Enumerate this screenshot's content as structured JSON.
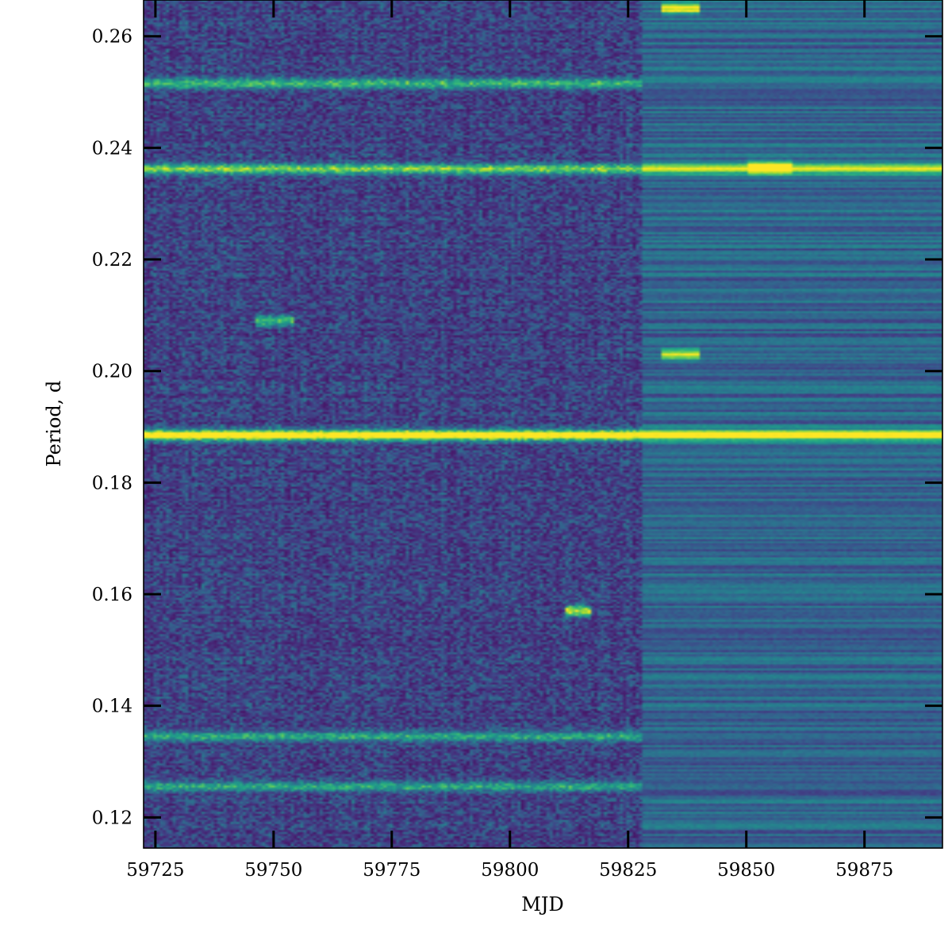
{
  "chart_data": {
    "type": "heatmap",
    "title": "",
    "xlabel": "MJD",
    "ylabel": "Period, d",
    "xlim": [
      59722.5,
      59891.5
    ],
    "ylim": [
      0.1145,
      0.2665
    ],
    "x_ticks": [
      59725,
      59750,
      59775,
      59800,
      59825,
      59850,
      59875
    ],
    "y_ticks": [
      0.12,
      0.14,
      0.16,
      0.18,
      0.2,
      0.22,
      0.24,
      0.26
    ],
    "x_tick_labels": [
      "59725",
      "59750",
      "59775",
      "59800",
      "59825",
      "59850",
      "59875"
    ],
    "y_tick_labels": [
      "0.12",
      "0.14",
      "0.16",
      "0.18",
      "0.20",
      "0.22",
      "0.24",
      "0.26"
    ],
    "colormap": "viridis",
    "colormap_stops": [
      "#440154",
      "#482878",
      "#3e4989",
      "#31688e",
      "#26828e",
      "#1f9e89",
      "#35b779",
      "#6ece58",
      "#b5de2b",
      "#fde725"
    ],
    "grid": false,
    "legend": "none",
    "features": [
      {
        "period": 0.1885,
        "x_range": [
          59722.5,
          59828
        ],
        "strength": 1.0
      },
      {
        "period": 0.1885,
        "x_range": [
          59828,
          59891.5
        ],
        "strength": 0.8
      },
      {
        "period": 0.2362,
        "x_range": [
          59722.5,
          59891.5
        ],
        "strength": 0.6
      },
      {
        "period": 0.2515,
        "x_range": [
          59722.5,
          59828
        ],
        "strength": 0.45
      },
      {
        "period": 0.1345,
        "x_range": [
          59722.5,
          59828
        ],
        "strength": 0.4
      },
      {
        "period": 0.1255,
        "x_range": [
          59722.5,
          59828
        ],
        "strength": 0.4
      },
      {
        "period": 0.157,
        "x_range": [
          59812,
          59817
        ],
        "strength": 0.75
      },
      {
        "period": 0.209,
        "x_range": [
          59746,
          59754
        ],
        "strength": 0.5
      },
      {
        "period": 0.203,
        "x_range": [
          59832,
          59840
        ],
        "strength": 0.6
      },
      {
        "period": 0.2365,
        "x_range": [
          59850,
          59860
        ],
        "strength": 0.8
      },
      {
        "period": 0.265,
        "x_range": [
          59832,
          59840
        ],
        "strength": 0.7
      }
    ]
  }
}
